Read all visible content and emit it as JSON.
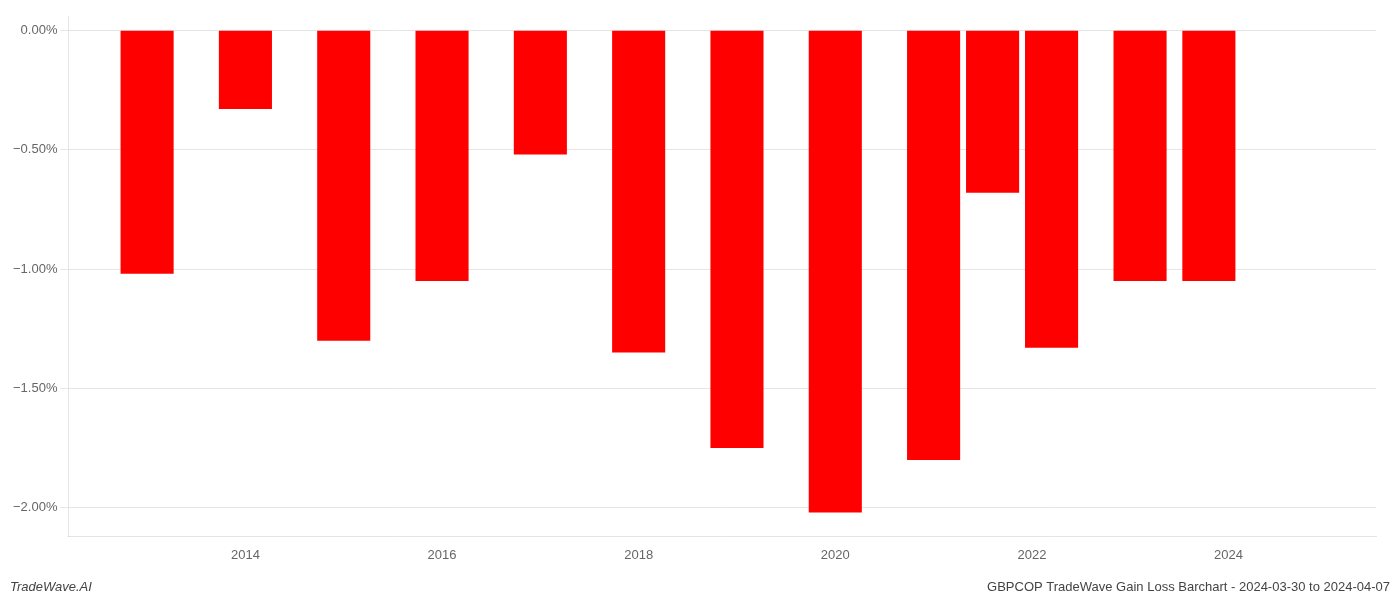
{
  "chart_data": {
    "type": "bar",
    "x": [
      2013,
      2014,
      2015,
      2016,
      2017,
      2018,
      2019,
      2020,
      2021,
      2021.6,
      2022.2,
      2023.1,
      2023.8
    ],
    "values": [
      -1.02,
      -0.33,
      -1.3,
      -1.05,
      -0.52,
      -1.35,
      -1.75,
      -2.02,
      -1.8,
      -0.68,
      -1.33,
      -1.05,
      -1.05
    ],
    "color": "#ff0000",
    "xlim": [
      2012.2,
      2025.5
    ],
    "xticks": [
      2014,
      2016,
      2018,
      2020,
      2022,
      2024
    ],
    "ylim": [
      -2.12,
      0.06
    ],
    "yticks": [
      {
        "value": 0.0,
        "label": "0.00%"
      },
      {
        "value": -0.5,
        "label": "−0.50%"
      },
      {
        "value": -1.0,
        "label": "−1.00%"
      },
      {
        "value": -1.5,
        "label": "−1.50%"
      },
      {
        "value": -2.0,
        "label": "−2.00%"
      }
    ],
    "grid": true,
    "annotations": [
      "TradeWave.AI",
      "GBPCOP TradeWave Gain Loss Barchart - 2024-03-30 to 2024-04-07"
    ]
  }
}
